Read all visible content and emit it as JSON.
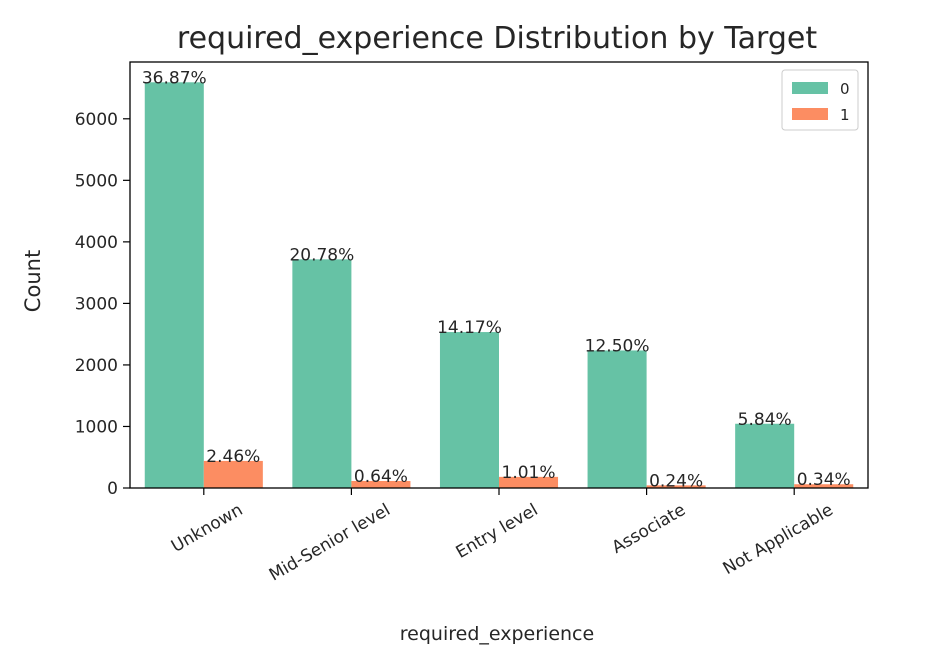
{
  "chart_data": {
    "type": "bar",
    "title": "required_experience Distribution by Target",
    "xlabel": "required_experience",
    "ylabel": "Count",
    "categories": [
      "Unknown",
      "Mid-Senior level",
      "Entry level",
      "Associate",
      "Not Applicable"
    ],
    "series": [
      {
        "name": "0",
        "color": "#66c2a5",
        "values": [
          6593,
          3716,
          2534,
          2235,
          1044
        ],
        "labels": [
          "36.87%",
          "20.78%",
          "14.17%",
          "12.50%",
          "5.84%"
        ]
      },
      {
        "name": "1",
        "color": "#fc8d62",
        "values": [
          440,
          114,
          181,
          43,
          61
        ],
        "labels": [
          "2.46%",
          "0.64%",
          "1.01%",
          "0.24%",
          "0.34%"
        ]
      }
    ],
    "yticks": [
      "0",
      "1000",
      "2000",
      "3000",
      "4000",
      "5000",
      "6000"
    ],
    "ylim": [
      0,
      6923
    ],
    "grid": false,
    "legend_position": "top-right"
  }
}
